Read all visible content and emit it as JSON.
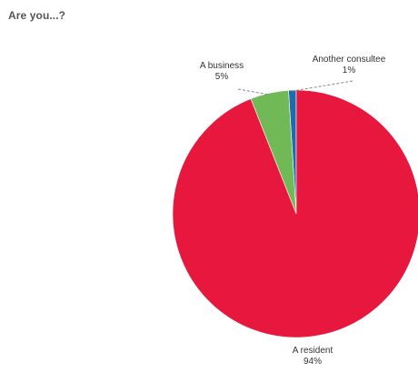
{
  "chart_data": {
    "type": "pie",
    "title": "Are you...?",
    "start_angle_deg": 0,
    "direction": "clockwise",
    "slices": [
      {
        "label": "A resident",
        "value": 94,
        "value_label": "94%",
        "color": "#e8173d"
      },
      {
        "label": "A business",
        "value": 5,
        "value_label": "5%",
        "color": "#70b956"
      },
      {
        "label": "Another consultee",
        "value": 1,
        "value_label": "1%",
        "color": "#1f6bb0"
      }
    ]
  }
}
